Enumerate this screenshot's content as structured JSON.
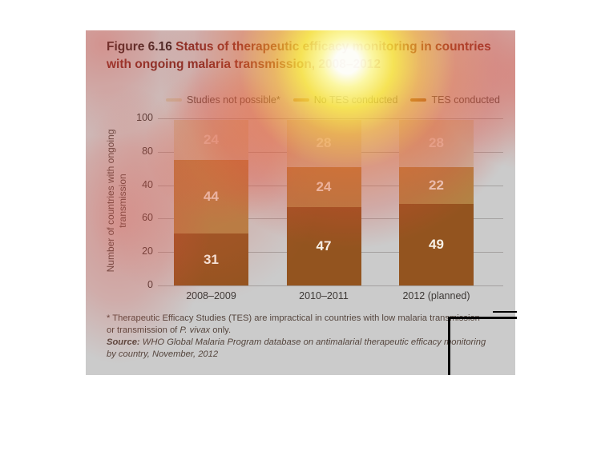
{
  "figure": {
    "label": "Figure 6.16",
    "title_line1": "Status of therapeutic efficacy monitoring in countries",
    "title_line2": "with ongoing malaria transmission, 2008–2012"
  },
  "legend": {
    "items": [
      {
        "label": "Studies not possible*",
        "color": "#c7bba4"
      },
      {
        "label": "No TES conducted",
        "color": "#b28344"
      },
      {
        "label": "TES conducted",
        "color": "#93541f"
      }
    ]
  },
  "chart_data": {
    "type": "bar",
    "subtype": "stacked",
    "title": "Figure 6.16 Status of therapeutic efficacy monitoring in countries with ongoing malaria transmission, 2008–2012",
    "categories": [
      "2008–2009",
      "2010–2011",
      "2012 (planned)"
    ],
    "series": [
      {
        "name": "TES conducted",
        "color": "#93541f",
        "values": [
          31,
          47,
          49
        ]
      },
      {
        "name": "No TES conducted",
        "color": "#b28344",
        "values": [
          44,
          24,
          22
        ]
      },
      {
        "name": "Studies not possible*",
        "color": "#c7bba4",
        "values": [
          24,
          28,
          28
        ]
      }
    ],
    "ylabel": "Number of countries with ongoing transmission",
    "xlabel": "",
    "ylim": [
      0,
      100
    ],
    "ytick_labels_top_to_bottom": [
      "100",
      "80",
      "40",
      "60",
      "20",
      "0"
    ],
    "grid": true,
    "legend_position": "top",
    "bar_value_labels_shown": true
  },
  "footnote": {
    "line1": "* Therapeutic Efficacy Studies (TES) are impractical in countries with low malaria transmission",
    "line2_pre": "or transmission of ",
    "line2_italic": "P. vivax",
    "line2_post": " only.",
    "source_label": "Source:",
    "source_line1": " WHO Global Malaria Program database on antimalarial therapeutic efficacy monitoring",
    "source_line2": "by country, November, 2012"
  }
}
